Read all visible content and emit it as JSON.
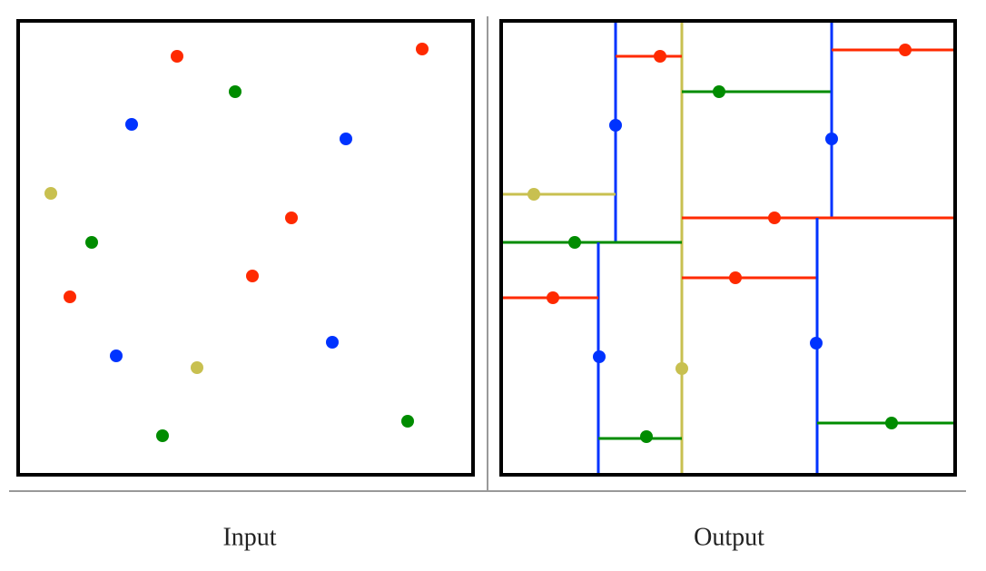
{
  "panels": [
    {
      "label": "Input"
    },
    {
      "label": "Output"
    }
  ]
}
